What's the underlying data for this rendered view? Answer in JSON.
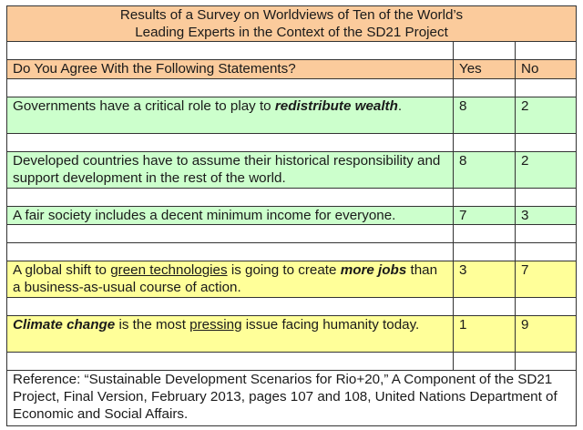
{
  "table": {
    "title_line1": "Results of a Survey on Worldviews of Ten of the World’s",
    "title_line2": "Leading Experts in the Context of the SD21 Project",
    "columns": {
      "statement": "Do You Agree With the Following Statements?",
      "yes": "Yes",
      "no": "No"
    },
    "rows": [
      {
        "parts": [
          "Governments have a critical role to play to ",
          "redistribute wealth",
          "."
        ],
        "yes": "8",
        "no": "2",
        "color": "#ccffcc"
      },
      {
        "parts": [
          "Developed countries have to assume their historical responsibility and support development in the rest of the world."
        ],
        "yes": "8",
        "no": "2",
        "color": "#ccffcc"
      },
      {
        "parts": [
          "A fair society includes a decent minimum income for everyone."
        ],
        "yes": "7",
        "no": "3",
        "color": "#ccffcc"
      },
      {
        "parts": [
          "A global shift to ",
          "green technologies",
          " is going to create ",
          "more jobs",
          " than a business-as-usual course of action."
        ],
        "yes": "3",
        "no": "7",
        "color": "#ffff99"
      },
      {
        "parts": [
          "Climate change",
          " is the most ",
          "pressing",
          " issue facing humanity today."
        ],
        "yes": "1",
        "no": "9",
        "color": "#ffff99"
      }
    ],
    "reference": "Reference:  “Sustainable Development Scenarios for Rio+20,” A Component of the SD21 Project, Final Version, February 2013, pages 107 and 108, United Nations Department of Economic and Social Affairs."
  },
  "colors": {
    "header_bg": "#fbcb9c",
    "agree_bg": "#ccffcc",
    "disagree_bg": "#ffff99",
    "border": "#333333"
  }
}
